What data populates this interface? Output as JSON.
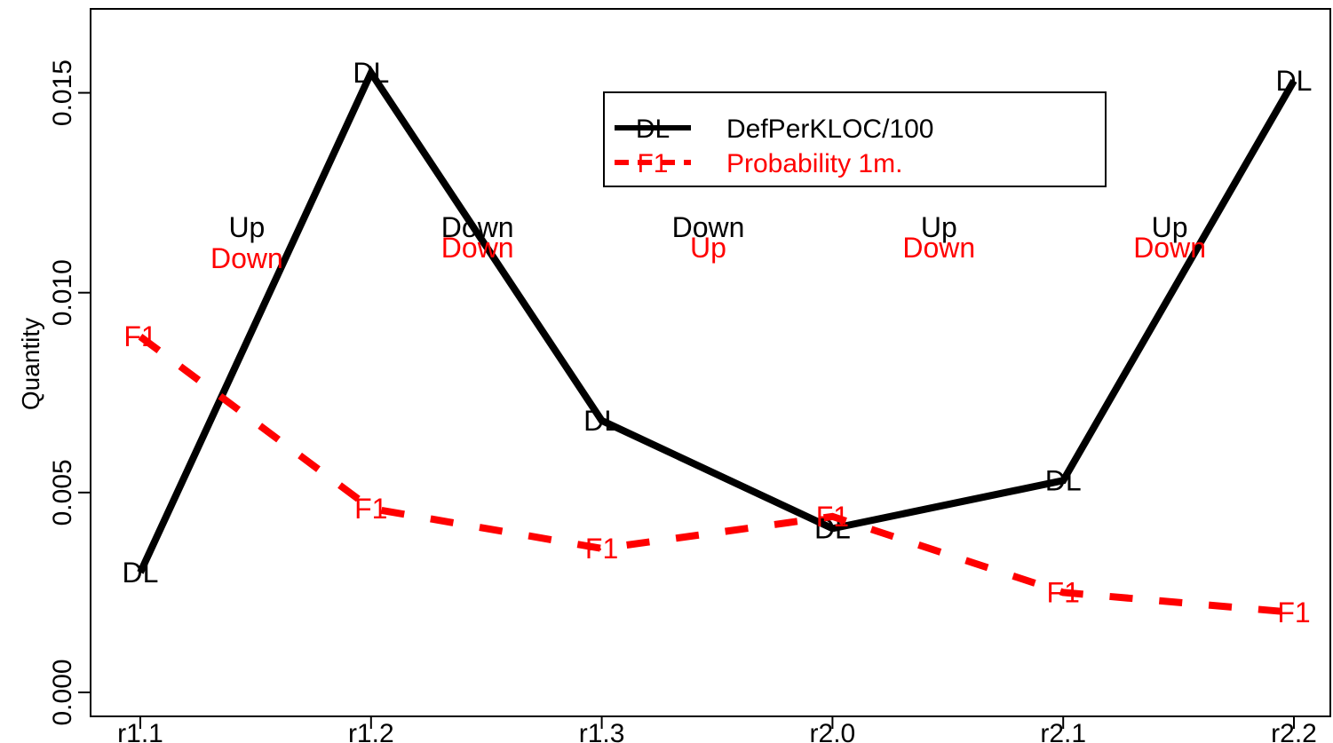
{
  "chart_data": {
    "type": "line",
    "ylabel": "Quantity",
    "xlabel": "",
    "title": "",
    "categories": [
      "r1.1",
      "r1.2",
      "r1.3",
      "r2.0",
      "r2.1",
      "r2.2"
    ],
    "ylim": [
      -0.0006,
      0.0171
    ],
    "yticks": [
      0.0,
      0.005,
      0.01,
      0.015
    ],
    "ytick_labels": [
      "0.000",
      "0.005",
      "0.010",
      "0.015"
    ],
    "series": [
      {
        "name": "DefPerKLOC/100",
        "marker_label": "DL",
        "color": "#000000",
        "dash": "solid",
        "values": [
          0.003,
          0.0155,
          0.0068,
          0.0041,
          0.0053,
          0.0153
        ]
      },
      {
        "name": "Probability 1m.",
        "marker_label": "F1",
        "color": "#ff0000",
        "dash": "dashed",
        "values": [
          0.0089,
          0.0046,
          0.0036,
          0.0044,
          0.0025,
          0.002
        ]
      }
    ],
    "annotations": [
      {
        "x_index": 0.5,
        "top": "Up",
        "bottom": "Down"
      },
      {
        "x_index": 1.5,
        "top": "Down",
        "bottom": "Down"
      },
      {
        "x_index": 2.5,
        "top": "Down",
        "bottom": "Up"
      },
      {
        "x_index": 3.5,
        "top": "Up",
        "bottom": "Down"
      },
      {
        "x_index": 4.5,
        "top": "Up",
        "bottom": "Down"
      }
    ],
    "legend": {
      "position": "top-center",
      "entries": [
        {
          "marker": "DL",
          "label": "DefPerKLOC/100",
          "color": "#000000"
        },
        {
          "marker": "F1",
          "label": "Probability 1m.",
          "color": "#ff0000"
        }
      ]
    },
    "grid": false
  }
}
